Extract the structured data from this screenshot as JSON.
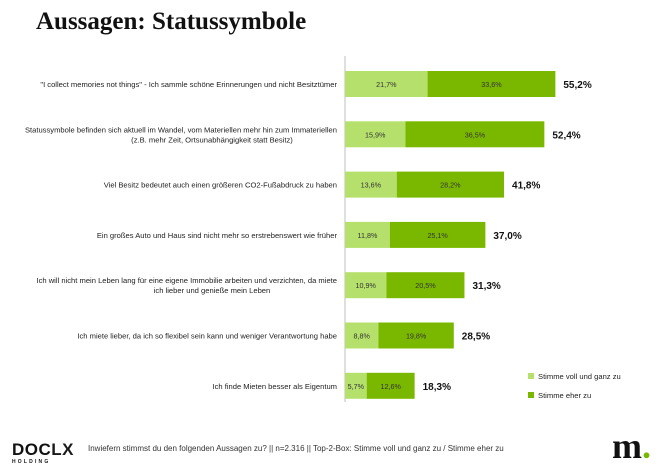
{
  "page": {
    "title": "Aussagen: Statussymbole"
  },
  "chart_data": {
    "type": "bar",
    "orientation": "horizontal",
    "stacked": true,
    "categories": [
      [
        "\"I collect memories not things\" - Ich sammle schöne Erinnerungen und nicht Besitztümer"
      ],
      [
        "Statussymbole befinden sich aktuell im Wandel, vom Materiellen mehr hin zum Immateriellen",
        "(z.B. mehr Zeit, Ortsunabhängigkeit statt Besitz)"
      ],
      [
        "Viel Besitz bedeutet auch einen größeren CO2-Fußabdruck zu haben"
      ],
      [
        "Ein großes Auto und Haus sind nicht mehr so erstrebenswert wie früher"
      ],
      [
        "Ich will nicht mein Leben lang für eine eigene Immobilie arbeiten und verzichten, da miete",
        "ich lieber und genieße mein Leben"
      ],
      [
        "Ich miete lieber, da ich so flexibel sein kann und weniger Verantwortung habe"
      ],
      [
        "Ich finde Mieten besser als Eigentum"
      ]
    ],
    "series": [
      {
        "name": "Stimme voll und ganz zu",
        "color": "#b5e06b",
        "values": [
          21.7,
          15.9,
          13.6,
          11.8,
          10.9,
          8.8,
          5.7
        ],
        "labels": [
          "21,7%",
          "15,9%",
          "13,6%",
          "11,8%",
          "10,9%",
          "8,8%",
          "5,7%"
        ]
      },
      {
        "name": "Stimme eher zu",
        "color": "#7ab800",
        "values": [
          33.6,
          36.5,
          28.2,
          25.1,
          20.5,
          19.8,
          12.6
        ],
        "labels": [
          "33,6%",
          "36,5%",
          "28,2%",
          "25,1%",
          "20,5%",
          "19,8%",
          "12,6%"
        ]
      }
    ],
    "totals": [
      55.2,
      52.4,
      41.8,
      37.0,
      31.3,
      28.5,
      18.3
    ],
    "total_labels": [
      "55,2%",
      "52,4%",
      "41,8%",
      "37,0%",
      "31,3%",
      "28,5%",
      "18,3%"
    ],
    "xlim": [
      0,
      55.2
    ],
    "axis_line": true,
    "grid": false,
    "legend_position": "bottom-right"
  },
  "footer": {
    "logo_word": "DOC",
    "logo_x": "LX",
    "logo_sub": "HOLDING",
    "note": "Inwiefern stimmst du den folgenden Aussagen zu? || n=2.316 || Top-2-Box: Stimme voll und ganz zu / Stimme eher zu",
    "brand_letter": "m",
    "brand_dot": "."
  }
}
